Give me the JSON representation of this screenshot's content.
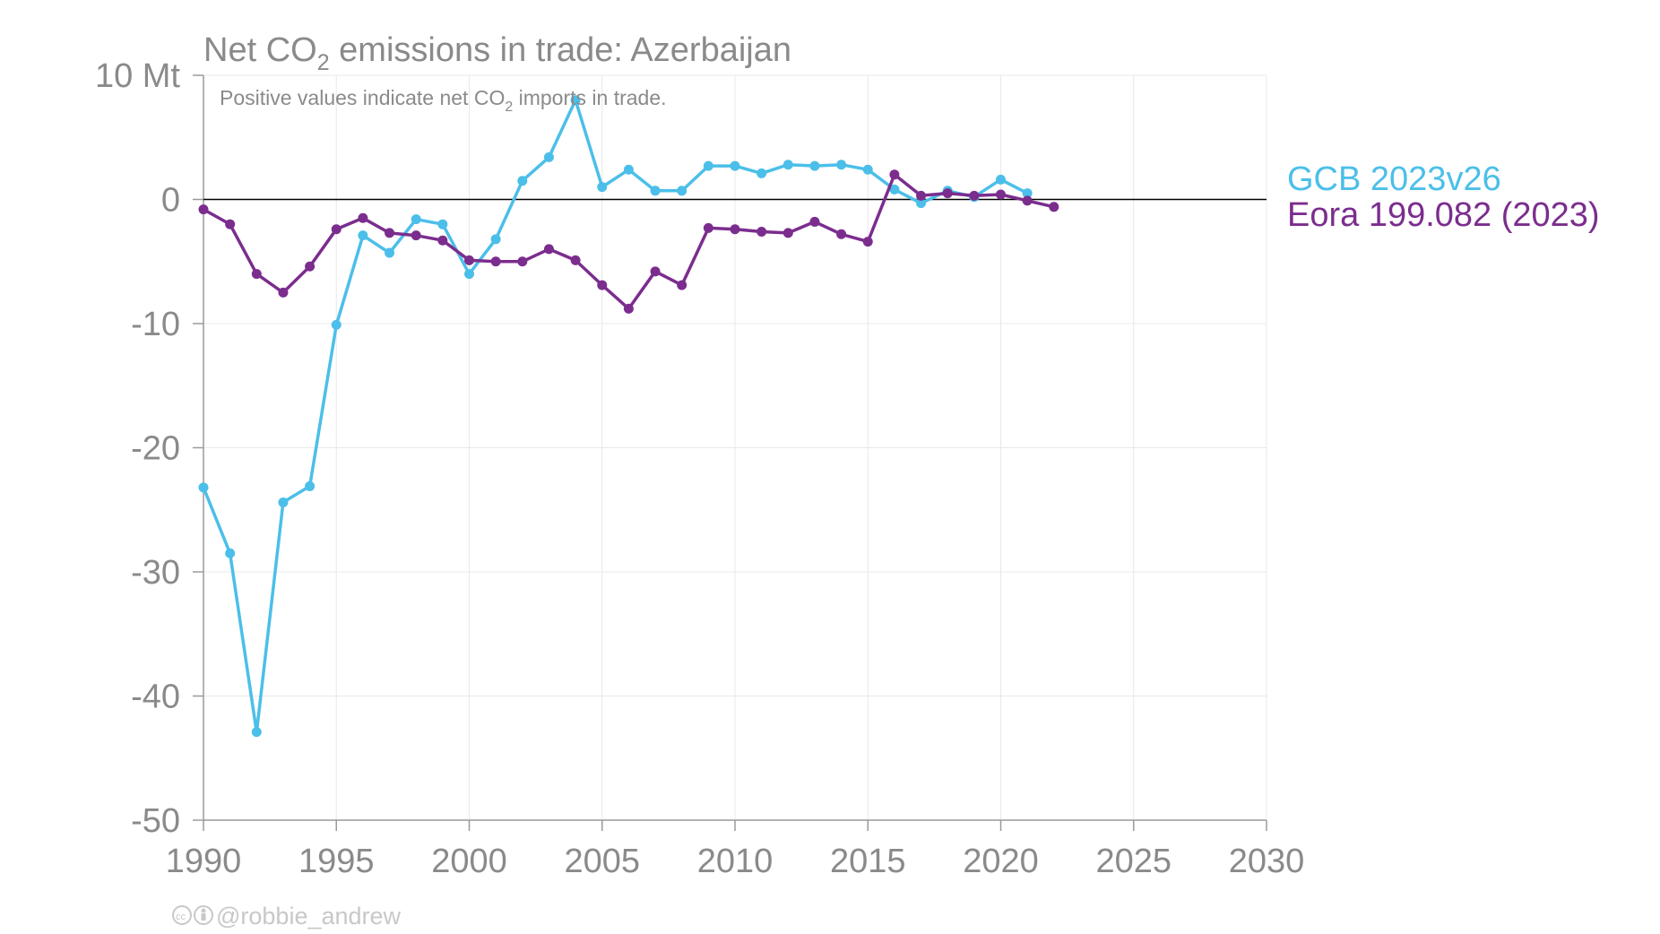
{
  "chart_data": {
    "type": "line",
    "title": "Net CO₂ emissions in trade: Azerbaijan",
    "title_parts": {
      "pre": "Net CO",
      "sub": "2",
      "post": " emissions in trade: Azerbaijan"
    },
    "subtitle": "Positive values indicate net CO₂ imports in trade.",
    "subtitle_parts": {
      "pre": "Positive values indicate net CO",
      "sub": "2",
      "post": " imports in trade."
    },
    "xlim": [
      1990,
      2030
    ],
    "ylim": [
      -50,
      10
    ],
    "x_ticks": [
      1990,
      1995,
      2000,
      2005,
      2010,
      2015,
      2020,
      2025,
      2030
    ],
    "y_ticks": [
      10,
      0,
      -10,
      -20,
      -30,
      -40,
      -50
    ],
    "y_tick_labels": [
      "10 Mt",
      "0",
      "-10",
      "-20",
      "-30",
      "-40",
      "-50"
    ],
    "grid": true,
    "legend_position": "right",
    "series": [
      {
        "name": "GCB 2023v26",
        "color": "#4bbfe9",
        "x": [
          1990,
          1991,
          1992,
          1993,
          1994,
          1995,
          1996,
          1997,
          1998,
          1999,
          2000,
          2001,
          2002,
          2003,
          2004,
          2005,
          2006,
          2007,
          2008,
          2009,
          2010,
          2011,
          2012,
          2013,
          2014,
          2015,
          2016,
          2017,
          2018,
          2019,
          2020,
          2021
        ],
        "y": [
          -23.2,
          -28.5,
          -42.9,
          -24.4,
          -23.1,
          -10.1,
          -2.9,
          -4.3,
          -1.6,
          -2.0,
          -6.0,
          -3.2,
          1.5,
          3.4,
          8.0,
          1.0,
          2.4,
          0.7,
          0.7,
          2.7,
          2.7,
          2.1,
          2.8,
          2.7,
          2.8,
          2.4,
          0.8,
          -0.3,
          0.7,
          0.2,
          1.6,
          0.5
        ]
      },
      {
        "name": "Eora 199.082 (2023)",
        "color": "#7b2d8e",
        "x": [
          1990,
          1991,
          1992,
          1993,
          1994,
          1995,
          1996,
          1997,
          1998,
          1999,
          2000,
          2001,
          2002,
          2003,
          2004,
          2005,
          2006,
          2007,
          2008,
          2009,
          2010,
          2011,
          2012,
          2013,
          2014,
          2015,
          2016,
          2017,
          2018,
          2019,
          2020,
          2021,
          2022
        ],
        "y": [
          -0.8,
          -2.0,
          -6.0,
          -7.5,
          -5.4,
          -2.4,
          -1.5,
          -2.7,
          -2.9,
          -3.3,
          -4.9,
          -5.0,
          -5.0,
          -4.0,
          -4.9,
          -6.9,
          -8.8,
          -5.8,
          -6.9,
          -2.3,
          -2.4,
          -2.6,
          -2.7,
          -1.8,
          -2.8,
          -3.4,
          2.0,
          0.3,
          0.5,
          0.3,
          0.4,
          -0.1,
          -0.6
        ]
      }
    ],
    "credit": "@robbie_andrew"
  }
}
